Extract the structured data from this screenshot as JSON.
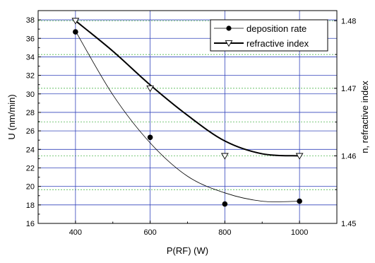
{
  "chart_data": {
    "type": "line",
    "title": "",
    "xlabel": "P(RF) (W)",
    "ylabel_left": "U (nm/min)",
    "ylabel_right": "n, refractive index",
    "xlim": [
      300,
      1100
    ],
    "x_ticks": [
      400,
      600,
      800,
      1000
    ],
    "ylim_left": [
      16,
      39
    ],
    "y_ticks_left": [
      16,
      18,
      20,
      22,
      24,
      26,
      28,
      30,
      32,
      34,
      36,
      38
    ],
    "ylim_right": [
      1.45,
      1.4815
    ],
    "y_ticks_right": [
      1.45,
      1.46,
      1.47,
      1.48
    ],
    "grid": true,
    "legend_position": "top-right",
    "series": [
      {
        "name": "deposition rate",
        "axis": "left",
        "marker": "filled-circle",
        "x": [
          400,
          600,
          800,
          1000
        ],
        "values": [
          36.7,
          25.3,
          18.1,
          18.4
        ],
        "fit_curve_x": [
          400,
          500,
          600,
          700,
          800,
          900,
          1000
        ],
        "fit_curve_y": [
          36.8,
          29.9,
          24.7,
          21.1,
          19.3,
          18.4,
          18.4
        ]
      },
      {
        "name": "refractive index",
        "axis": "right",
        "marker": "open-triangle-down",
        "x": [
          400,
          600,
          800,
          1000
        ],
        "values": [
          1.48,
          1.47,
          1.46,
          1.46
        ],
        "fit_curve_x": [
          400,
          500,
          600,
          700,
          800,
          900,
          1000
        ],
        "fit_curve_y": [
          1.48,
          1.4755,
          1.4705,
          1.466,
          1.4622,
          1.4603,
          1.46
        ]
      }
    ]
  }
}
